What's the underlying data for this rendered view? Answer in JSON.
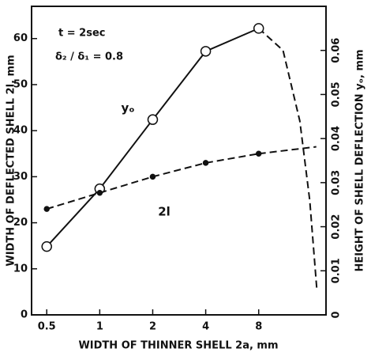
{
  "chart_data": {
    "type": "line",
    "x_label": "WIDTH OF THINNER SHELL 2a, mm",
    "y_label": "WIDTH OF DEFLECTED SHELL 2l, mm",
    "y2_label": "HEIGHT OF SHELL DEFLECTION yₒ, mm",
    "annotations": [
      "t = 2sec",
      "δ₂ / δ₁ = 0.8"
    ],
    "x_log": true,
    "xlim": [
      0.41,
      19.3
    ],
    "xticks": [
      0.5,
      1,
      2,
      4,
      8
    ],
    "ylim": [
      0,
      67
    ],
    "yticks": [
      0,
      10,
      20,
      30,
      40,
      50,
      60
    ],
    "y2lim": [
      0,
      0.07
    ],
    "y2ticks": [
      0,
      0.01,
      0.02,
      0.03,
      0.04,
      0.05,
      0.06
    ],
    "series": [
      {
        "name": "yₒ",
        "color": "#111111",
        "axis": "y2",
        "marker": "open-circle",
        "line": "solid",
        "x": [
          0.5,
          1,
          2,
          4,
          8
        ],
        "values": [
          0.0155,
          0.0286,
          0.0443,
          0.0598,
          0.065
        ],
        "extension": {
          "line": "dashed",
          "x": [
            8,
            11,
            13.7,
            15.6,
            17.1
          ],
          "values": [
            0.065,
            0.06,
            0.044,
            0.026,
            0.006
          ]
        }
      },
      {
        "name": "2l",
        "color": "#111111",
        "axis": "y",
        "marker": "dot",
        "line": "dashed",
        "x": [
          0.5,
          1,
          2,
          4,
          8
        ],
        "values": [
          23,
          26.5,
          30,
          33,
          35
        ],
        "extension": {
          "line": "dashed",
          "x": [
            8,
            17
          ],
          "values": [
            35,
            36.5
          ]
        }
      }
    ]
  }
}
